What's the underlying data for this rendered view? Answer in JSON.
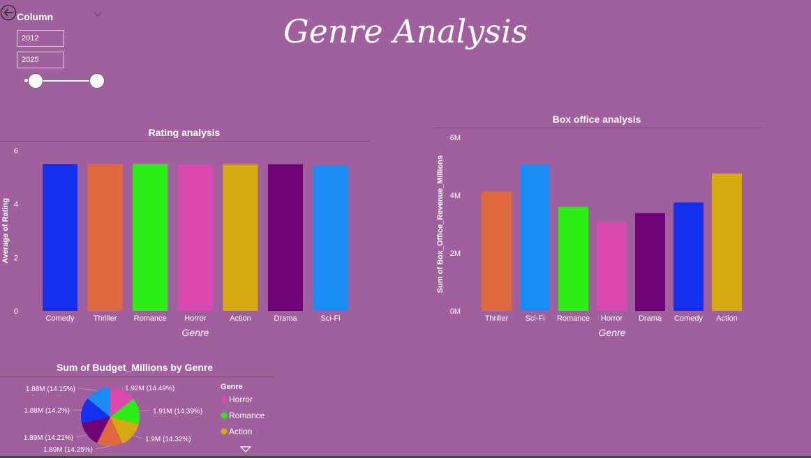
{
  "page": {
    "title": "Genre Analysis",
    "background": "#a0609e"
  },
  "slicer": {
    "title": "Column",
    "start": "2012",
    "end": "2025",
    "range": [
      2012,
      2025
    ],
    "selected": [
      2012,
      2025
    ]
  },
  "icons": {
    "back": "back-arrow-icon",
    "dropdown": "chevron-down-icon",
    "more": "triangle-down-icon"
  },
  "charts": {
    "rating": {
      "title": "Rating analysis"
    },
    "box": {
      "title": "Box office analysis"
    },
    "pie": {
      "title": "Sum of Budget_Millions by Genre"
    }
  },
  "chart_data": [
    {
      "type": "bar",
      "title": "Rating analysis",
      "xlabel": "Genre",
      "ylabel": "Average of Rating",
      "categories": [
        "Comedy",
        "Thriller",
        "Romance",
        "Horror",
        "Action",
        "Drama",
        "Sci-Fi"
      ],
      "values": [
        5.5,
        5.5,
        5.5,
        5.47,
        5.48,
        5.49,
        5.44
      ],
      "colors": [
        "#1230ee",
        "#e0683f",
        "#2cee17",
        "#db48b0",
        "#d6a911",
        "#6e0478",
        "#1a8cf6"
      ],
      "ylim": [
        0,
        6
      ],
      "yticks": [
        "0",
        "2",
        "4",
        "6"
      ],
      "ytick_values": [
        0,
        2,
        4,
        6
      ],
      "grid": false
    },
    {
      "type": "bar",
      "title": "Box office analysis",
      "xlabel": "Genre",
      "ylabel": "Sum of Box_Office_Revenue_Millions",
      "categories": [
        "Thriller",
        "Sci-Fi",
        "Romance",
        "Horror",
        "Drama",
        "Comedy",
        "Action"
      ],
      "values": [
        4.13,
        5.05,
        3.6,
        3.07,
        3.38,
        3.75,
        4.75
      ],
      "colors": [
        "#e0683f",
        "#1a8cf6",
        "#2cee17",
        "#db48b0",
        "#6e0478",
        "#1230ee",
        "#d6a911"
      ],
      "ylim": [
        0,
        6
      ],
      "yticks": [
        "0M",
        "2M",
        "4M",
        "6M"
      ],
      "ytick_values": [
        0,
        2,
        4,
        6
      ],
      "grid": false
    },
    {
      "type": "pie",
      "title": "Sum of Budget_Millions by Genre",
      "legend_title": "Genre",
      "legend_position": "right",
      "legend": [
        "Horror",
        "Romance",
        "Action"
      ],
      "slices": [
        {
          "name": "Horror",
          "value": 1.92,
          "percent": 14.49,
          "label": "1.92M (14.49%)",
          "color": "#db48b0"
        },
        {
          "name": "Romance",
          "value": 1.91,
          "percent": 14.39,
          "label": "1.91M (14.39%)",
          "color": "#2cee17"
        },
        {
          "name": "Action",
          "value": 1.9,
          "percent": 14.32,
          "label": "1.9M (14.32%)",
          "color": "#d6a911"
        },
        {
          "name": "Thriller",
          "value": 1.89,
          "percent": 14.25,
          "label": "1.89M (14.25%)",
          "color": "#e0683f"
        },
        {
          "name": "Drama",
          "value": 1.89,
          "percent": 14.21,
          "label": "1.89M (14.21%)",
          "color": "#6e0478"
        },
        {
          "name": "Comedy",
          "value": 1.88,
          "percent": 14.2,
          "label": "1.88M (14.2%)",
          "color": "#1230ee"
        },
        {
          "name": "Sci-Fi",
          "value": 1.88,
          "percent": 14.15,
          "label": "1.88M (14.15%)",
          "color": "#1a8cf6"
        }
      ]
    }
  ]
}
